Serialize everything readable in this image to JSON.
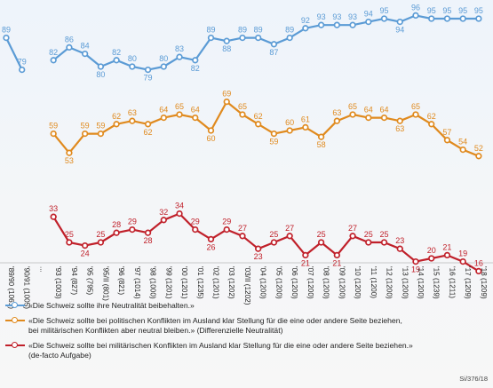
{
  "chart_data": {
    "type": "line",
    "categories": [
      "'89/90 (1061)",
      "'90/91 (1005)",
      "...",
      "'93 (1003)",
      "'94 (827)",
      "'95 (795)",
      "'95/II (801)",
      "'96 (821)",
      "'97 (1014)",
      "'98 (1000)",
      "'99 (1201)",
      "'00 (1201)",
      "'01 (1235)",
      "'02 (1201)",
      "'03 (1202)",
      "'03/II (1202)",
      "'04 (1200)",
      "'05 (1200)",
      "'06 (1200)",
      "'07 (1200)",
      "'08 (1200)",
      "'09 (1200)",
      "'10 (1200)",
      "'11 (1200)",
      "'12 (1200)",
      "'13 (1200)",
      "'14 (1200)",
      "'15 (1239)",
      "'16 (1211)",
      "'17 (1209)",
      "'18 (1209)"
    ],
    "series": [
      {
        "name": "«Die Schweiz sollte ihre Neutralität beibehalten.»",
        "color": "#5b9bd5",
        "values": [
          89,
          79,
          null,
          82,
          86,
          84,
          80,
          82,
          80,
          79,
          80,
          83,
          82,
          89,
          88,
          89,
          89,
          87,
          89,
          92,
          93,
          93,
          93,
          94,
          95,
          94,
          96,
          95,
          95,
          95,
          95
        ]
      },
      {
        "name": "«Die Schweiz sollte bei politischen Konflikten im Ausland klar Stellung für die eine oder andere Seite beziehen, bei militärischen Konflikten aber neutral bleiben.» (Differenzielle Neutralität)",
        "color": "#e08a1e",
        "values": [
          null,
          null,
          null,
          59,
          53,
          59,
          59,
          62,
          63,
          62,
          64,
          65,
          64,
          60,
          69,
          65,
          62,
          59,
          60,
          61,
          58,
          63,
          65,
          64,
          64,
          63,
          65,
          62,
          57,
          54,
          52
        ]
      },
      {
        "name": "«Die Schweiz sollte bei militärischen Konflikten im Ausland klar Stellung für die eine oder andere Seite beziehen.» (de-facto Aufgabe)",
        "color": "#c0202a",
        "values": [
          null,
          null,
          null,
          33,
          25,
          24,
          25,
          28,
          29,
          28,
          32,
          34,
          29,
          26,
          29,
          27,
          23,
          25,
          27,
          21,
          25,
          21,
          27,
          25,
          25,
          23,
          19,
          20,
          21,
          19,
          16
        ]
      }
    ],
    "legend": [
      {
        "lines": [
          "«Die Schweiz sollte ihre Neutralität beibehalten.»"
        ]
      },
      {
        "lines": [
          "«Die Schweiz sollte bei politischen Konflikten im Ausland klar Stellung für die eine oder andere Seite beziehen,",
          "bei militärischen Konflikten aber neutral bleiben.» (Differenzielle Neutralität)"
        ]
      },
      {
        "lines": [
          "«Die Schweiz sollte bei militärischen Konflikten im Ausland klar Stellung für die eine oder andere Seite beziehen.»",
          "(de-facto Aufgabe)"
        ]
      }
    ],
    "legend_position": "bottom",
    "grid": false,
    "source": "Si/376/18"
  }
}
